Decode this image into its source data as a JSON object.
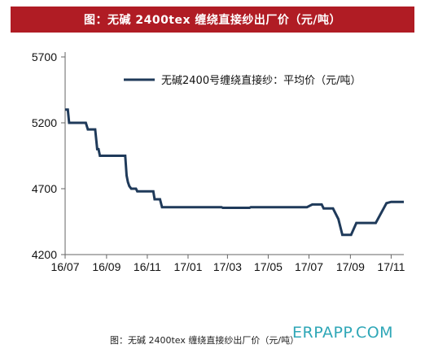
{
  "header": {
    "title": "图：无碱 2400tex 缠绕直接纱出厂价（元/吨）"
  },
  "footer": {
    "caption": "图：无碱 2400tex 缠绕直接纱出厂价（元/吨）",
    "watermark": "ERPAPP.COM"
  },
  "colors": {
    "title_bg": "#b01c24",
    "line": "#1f3a5a",
    "watermark": "#2fa7b7"
  },
  "chart_data": {
    "type": "line",
    "title": "",
    "xlabel": "",
    "ylabel": "",
    "xlim": [
      "2016-07-01",
      "2017-11-20"
    ],
    "ylim": [
      4200,
      5700
    ],
    "yticks": [
      4200,
      4700,
      5200,
      5700
    ],
    "ytick_labels": [
      "4200",
      "4700",
      "5200",
      "5700"
    ],
    "xticks": [
      "2016-07-01",
      "2016-09-01",
      "2016-11-01",
      "2017-01-01",
      "2017-03-01",
      "2017-05-01",
      "2017-07-01",
      "2017-09-01",
      "2017-11-01"
    ],
    "xtick_labels": [
      "16/07",
      "16/09",
      "16/11",
      "17/01",
      "17/03",
      "17/05",
      "17/07",
      "17/09",
      "17/11"
    ],
    "grid": false,
    "legend_position": "top-right",
    "series": [
      {
        "name": "无碱2400号缠绕直接纱：平均价（元/吨）",
        "points": [
          [
            "2016-07-01",
            5300
          ],
          [
            "2016-07-05",
            5300
          ],
          [
            "2016-07-07",
            5200
          ],
          [
            "2016-08-01",
            5200
          ],
          [
            "2016-08-04",
            5150
          ],
          [
            "2016-08-15",
            5150
          ],
          [
            "2016-08-18",
            5000
          ],
          [
            "2016-08-20",
            5000
          ],
          [
            "2016-08-22",
            4950
          ],
          [
            "2016-09-29",
            4950
          ],
          [
            "2016-10-01",
            4800
          ],
          [
            "2016-10-03",
            4750
          ],
          [
            "2016-10-05",
            4720
          ],
          [
            "2016-10-08",
            4700
          ],
          [
            "2016-10-15",
            4700
          ],
          [
            "2016-10-17",
            4680
          ],
          [
            "2016-11-10",
            4680
          ],
          [
            "2016-11-12",
            4620
          ],
          [
            "2016-11-20",
            4620
          ],
          [
            "2016-11-23",
            4560
          ],
          [
            "2017-02-20",
            4560
          ],
          [
            "2017-02-22",
            4555
          ],
          [
            "2017-04-03",
            4555
          ],
          [
            "2017-04-05",
            4560
          ],
          [
            "2017-06-28",
            4560
          ],
          [
            "2017-07-06",
            4580
          ],
          [
            "2017-07-20",
            4580
          ],
          [
            "2017-07-23",
            4550
          ],
          [
            "2017-08-06",
            4550
          ],
          [
            "2017-08-14",
            4470
          ],
          [
            "2017-08-20",
            4350
          ],
          [
            "2017-09-02",
            4350
          ],
          [
            "2017-09-10",
            4440
          ],
          [
            "2017-10-09",
            4440
          ],
          [
            "2017-10-25",
            4590
          ],
          [
            "2017-11-01",
            4600
          ],
          [
            "2017-11-20",
            4600
          ]
        ]
      }
    ]
  }
}
